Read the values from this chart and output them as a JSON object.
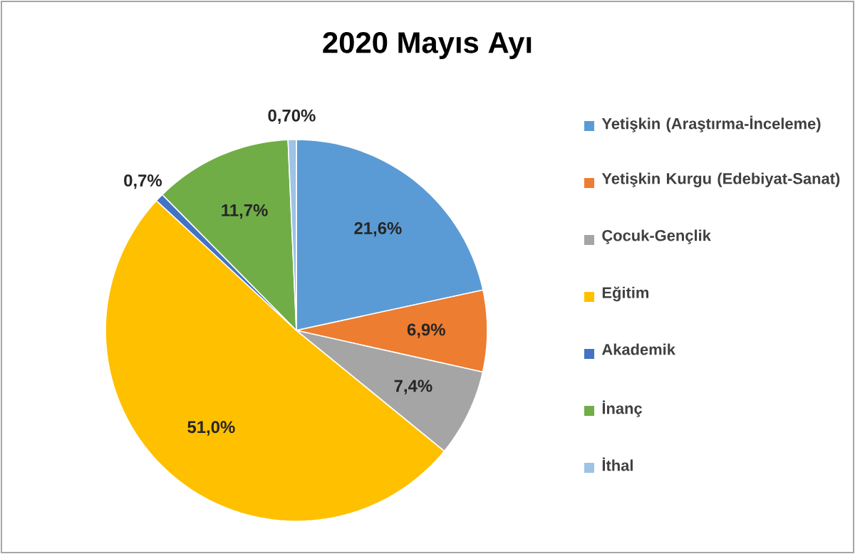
{
  "chart_data": {
    "type": "pie",
    "title": "2020 Mayıs Ayı",
    "categories": [
      "Yetişkin (Araştırma-İnceleme)",
      "Yetişkin Kurgu (Edebiyat-Sanat)",
      "Çocuk-Gençlik",
      "Eğitim",
      "Akademik",
      "İnanç",
      "İthal"
    ],
    "values": [
      21.6,
      6.9,
      7.4,
      51.0,
      0.7,
      11.7,
      0.7
    ],
    "value_labels": [
      "21,6%",
      "6,9%",
      "7,4%",
      "51,0%",
      "0,7%",
      "11,7%",
      "0,70%"
    ],
    "colors": [
      "#5b9bd5",
      "#ed7d31",
      "#a5a5a5",
      "#ffc000",
      "#4472c4",
      "#70ad47",
      "#9dc3e6"
    ],
    "legend": "right"
  }
}
